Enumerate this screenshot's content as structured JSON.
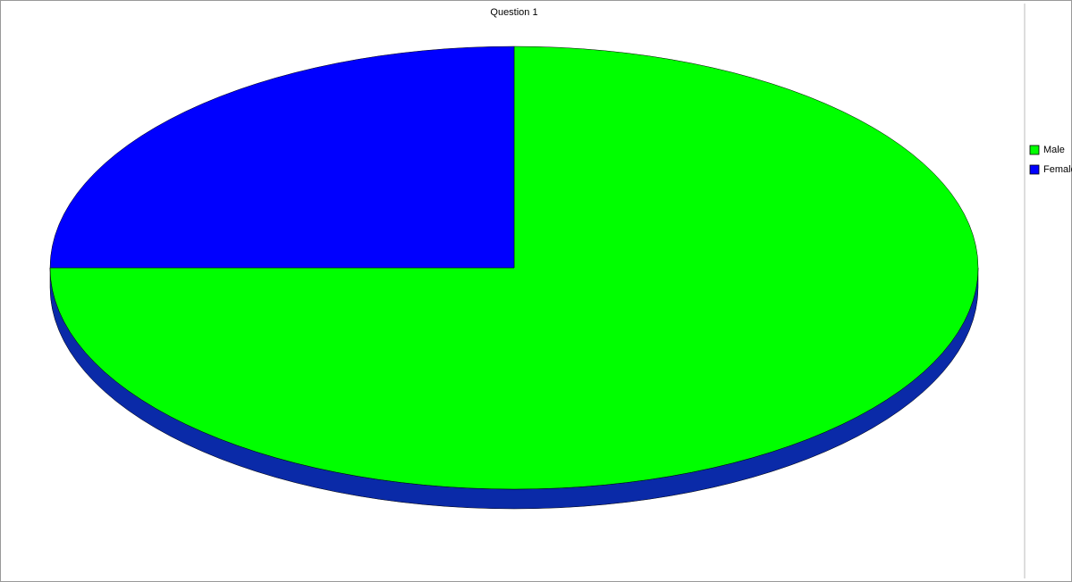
{
  "chart_data": {
    "type": "pie",
    "title": "Question 1",
    "categories": [
      "Male",
      "Female"
    ],
    "values": [
      75,
      25
    ],
    "colors": [
      "#00ff00",
      "#0000ff"
    ],
    "legend": "right"
  }
}
